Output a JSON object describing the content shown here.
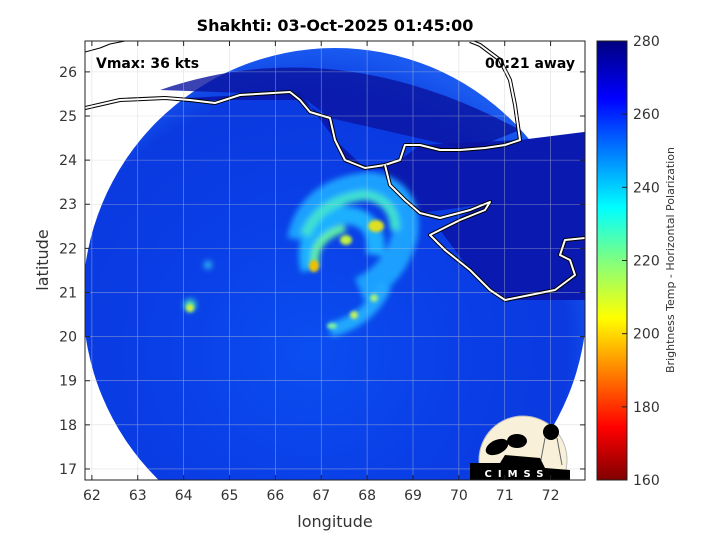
{
  "title": "Shakhti: 03-Oct-2025 01:45:00",
  "vmax_label": "Vmax: 36 kts",
  "time_away_label": "00:21 away",
  "xlabel": "longitude",
  "ylabel": "latitude",
  "colorbar_label": "Brightness Temp - Horizontal Polarization",
  "logo_text": "CIMSS",
  "colors": {
    "coastline": "#ffffff",
    "background_disk": "#0a1eb4",
    "outside": "#ffffff"
  },
  "chart_data": {
    "type": "heatmap",
    "title": "Shakhti: 03-Oct-2025 01:45:00",
    "xlabel": "longitude",
    "ylabel": "latitude",
    "xlim": [
      61.85,
      72.75
    ],
    "ylim": [
      16.75,
      26.7
    ],
    "xticks": [
      "62",
      "63",
      "64",
      "65",
      "66",
      "67",
      "68",
      "69",
      "70",
      "71",
      "72"
    ],
    "yticks": [
      "17",
      "18",
      "19",
      "20",
      "21",
      "22",
      "23",
      "24",
      "25",
      "26"
    ],
    "grid": true,
    "colorbar": {
      "label": "Brightness Temp - Horizontal Polarization",
      "range": [
        160,
        280
      ],
      "ticks": [
        "160",
        "180",
        "200",
        "220",
        "240",
        "260",
        "280"
      ],
      "colormap": "jet"
    }
  }
}
